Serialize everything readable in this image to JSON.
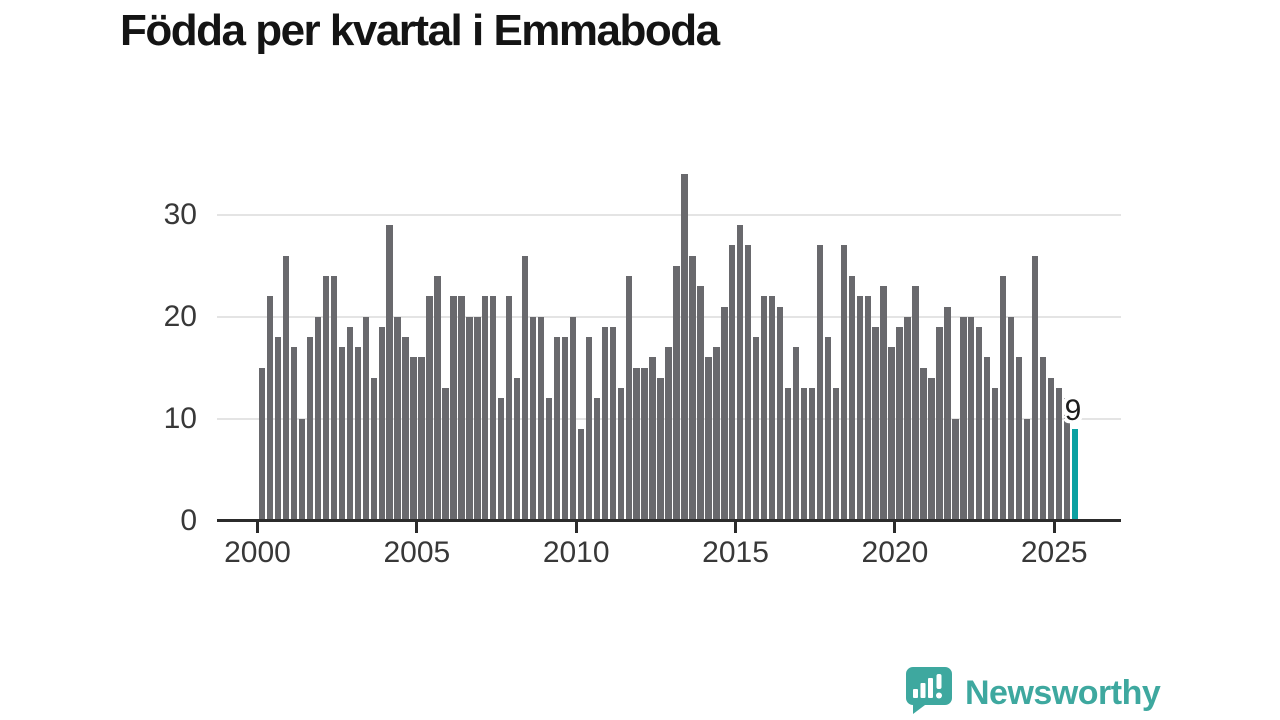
{
  "title": "Födda per kvartal i Emmaboda",
  "colors": {
    "bar": "#69696d",
    "highlight": "#0ba1a2",
    "grid": "#e4e4e4",
    "axis": "#2b2b2b",
    "tick_text": "#383838",
    "title_text": "#141414",
    "logo_teal": "#3ea89f"
  },
  "chart_data": {
    "type": "bar",
    "title": "Födda per kvartal i Emmaboda",
    "xlabel": "",
    "ylabel": "",
    "ylim": [
      0,
      35
    ],
    "grid": "horizontal",
    "yticks": [
      0,
      10,
      20,
      30
    ],
    "xticks": [
      2000,
      2005,
      2010,
      2015,
      2020,
      2025
    ],
    "years": [
      {
        "year": 2000,
        "values": [
          15,
          22,
          18,
          26
        ]
      },
      {
        "year": 2001,
        "values": [
          17,
          10,
          18,
          20
        ]
      },
      {
        "year": 2002,
        "values": [
          24,
          24,
          17,
          19
        ]
      },
      {
        "year": 2003,
        "values": [
          17,
          20,
          14,
          19
        ]
      },
      {
        "year": 2004,
        "values": [
          29,
          20,
          18,
          16
        ]
      },
      {
        "year": 2005,
        "values": [
          16,
          22,
          24,
          13
        ]
      },
      {
        "year": 2006,
        "values": [
          22,
          22,
          20,
          20
        ]
      },
      {
        "year": 2007,
        "values": [
          22,
          22,
          12,
          22
        ]
      },
      {
        "year": 2008,
        "values": [
          14,
          26,
          20,
          20
        ]
      },
      {
        "year": 2009,
        "values": [
          12,
          18,
          18,
          20
        ]
      },
      {
        "year": 2010,
        "values": [
          9,
          18,
          12,
          19
        ]
      },
      {
        "year": 2011,
        "values": [
          19,
          13,
          24,
          15
        ]
      },
      {
        "year": 2012,
        "values": [
          15,
          16,
          14,
          17
        ]
      },
      {
        "year": 2013,
        "values": [
          25,
          34,
          26,
          23
        ]
      },
      {
        "year": 2014,
        "values": [
          16,
          17,
          21,
          27
        ]
      },
      {
        "year": 2015,
        "values": [
          29,
          27,
          18,
          22
        ]
      },
      {
        "year": 2016,
        "values": [
          22,
          21,
          13,
          17
        ]
      },
      {
        "year": 2017,
        "values": [
          13,
          13,
          27,
          18
        ]
      },
      {
        "year": 2018,
        "values": [
          13,
          27,
          24,
          22
        ]
      },
      {
        "year": 2019,
        "values": [
          22,
          19,
          23,
          17
        ]
      },
      {
        "year": 2020,
        "values": [
          19,
          20,
          23,
          15
        ]
      },
      {
        "year": 2021,
        "values": [
          14,
          19,
          21,
          10
        ]
      },
      {
        "year": 2022,
        "values": [
          20,
          20,
          19,
          16
        ]
      },
      {
        "year": 2023,
        "values": [
          13,
          24,
          20,
          16
        ]
      },
      {
        "year": 2024,
        "values": [
          10,
          26,
          16,
          14
        ]
      },
      {
        "year": 2025,
        "values": [
          13,
          12,
          9
        ]
      }
    ],
    "highlight": {
      "year": 2025,
      "quarter": 3,
      "value": 9,
      "label": "9"
    },
    "legend": "none"
  },
  "annotation": {
    "text": "9"
  },
  "logo": {
    "text": "Newsworthy",
    "icon": "speech-bubble-bar-chart"
  }
}
